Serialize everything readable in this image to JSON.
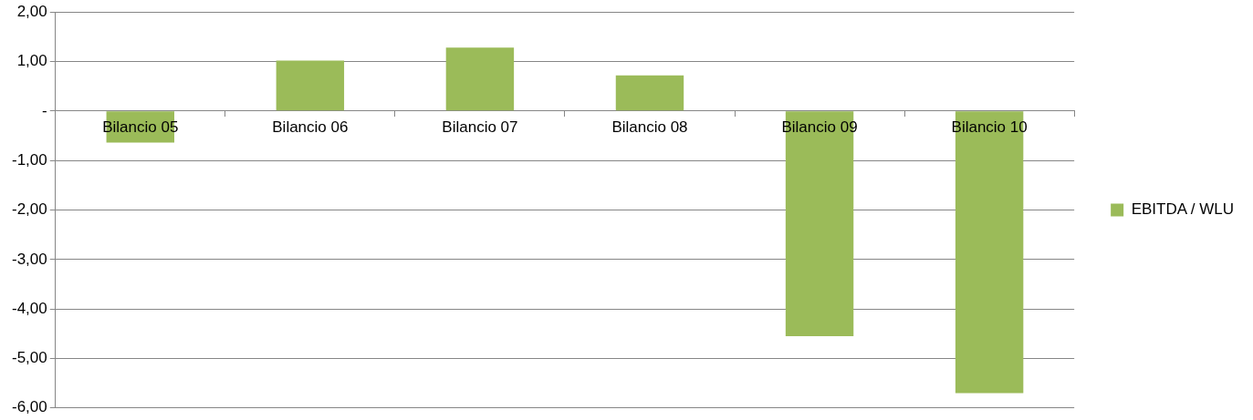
{
  "chart_data": {
    "type": "bar",
    "categories": [
      "Bilancio 05",
      "Bilancio 06",
      "Bilancio 07",
      "Bilancio 08",
      "Bilancio 09",
      "Bilancio 10"
    ],
    "series": [
      {
        "name": "EBITDA / WLU",
        "color": "#9bbb59",
        "values": [
          -0.64,
          1.02,
          1.28,
          0.72,
          -4.55,
          -5.7
        ]
      }
    ],
    "ylim": [
      -6,
      2
    ],
    "yticks": [
      {
        "value": -6,
        "label": "-6,00"
      },
      {
        "value": -5,
        "label": "-5,00"
      },
      {
        "value": -4,
        "label": "-4,00"
      },
      {
        "value": -3,
        "label": "-3,00"
      },
      {
        "value": -2,
        "label": "-2,00"
      },
      {
        "value": -1,
        "label": "-1,00"
      },
      {
        "value": 0,
        "label": "-"
      },
      {
        "value": 1,
        "label": "1,00"
      },
      {
        "value": 2,
        "label": "2,00"
      }
    ],
    "grid": "y",
    "legend": "right"
  }
}
